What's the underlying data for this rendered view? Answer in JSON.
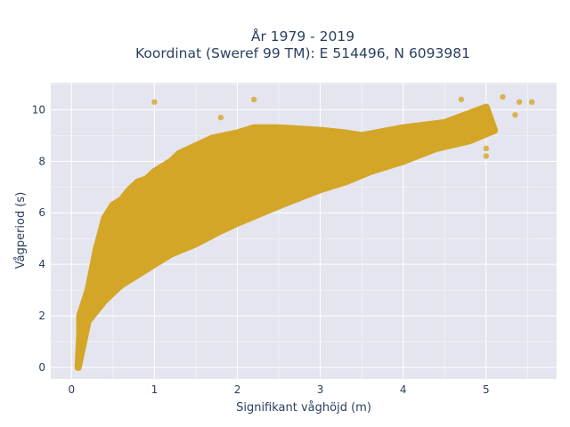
{
  "chart_data": {
    "type": "scatter",
    "title_line1": "År 1979 - 2019",
    "title_line2": "Koordinat (Sweref 99 TM): E 514496, N 6093981",
    "xlabel": "Signifikant våghöjd (m)",
    "ylabel": "Vågperiod (s)",
    "xlim": [
      -0.25,
      5.85
    ],
    "ylim": [
      -0.45,
      11.05
    ],
    "xticks": [
      0,
      1,
      2,
      3,
      4,
      5
    ],
    "yticks": [
      0,
      2,
      4,
      6,
      8,
      10
    ],
    "grid": true,
    "colors": {
      "marker": "#d4a628",
      "plot_bg": "#e5e5ef",
      "grid": "#ffffff",
      "text": "#2a3f5f"
    },
    "series": [
      {
        "marker_color": "#d4a628",
        "points": [
          [
            0.08,
            0.0
          ],
          [
            0.1,
            1.3
          ],
          [
            0.1,
            2.0
          ],
          [
            0.15,
            2.5
          ],
          [
            0.2,
            3.0
          ],
          [
            0.25,
            3.8
          ],
          [
            0.3,
            4.6
          ],
          [
            0.35,
            5.2
          ],
          [
            0.4,
            5.8
          ],
          [
            0.5,
            6.3
          ],
          [
            0.6,
            6.5
          ],
          [
            0.7,
            6.9
          ],
          [
            0.8,
            7.2
          ],
          [
            0.9,
            7.3
          ],
          [
            1.0,
            7.6
          ],
          [
            1.1,
            7.8
          ],
          [
            1.2,
            8.0
          ],
          [
            1.3,
            8.3
          ],
          [
            1.5,
            8.6
          ],
          [
            1.7,
            8.9
          ],
          [
            2.0,
            9.1
          ],
          [
            2.2,
            9.3
          ],
          [
            2.5,
            9.3
          ],
          [
            3.0,
            9.2
          ],
          [
            3.3,
            9.1
          ],
          [
            3.5,
            9.0
          ],
          [
            4.0,
            9.3
          ],
          [
            4.5,
            9.5
          ],
          [
            5.0,
            10.1
          ],
          [
            0.2,
            1.8
          ],
          [
            0.3,
            2.2
          ],
          [
            0.4,
            2.6
          ],
          [
            0.5,
            2.9
          ],
          [
            0.6,
            3.2
          ],
          [
            0.8,
            3.6
          ],
          [
            1.0,
            4.0
          ],
          [
            1.2,
            4.4
          ],
          [
            1.5,
            4.8
          ],
          [
            1.8,
            5.3
          ],
          [
            2.0,
            5.6
          ],
          [
            2.3,
            6.0
          ],
          [
            2.6,
            6.4
          ],
          [
            3.0,
            6.9
          ],
          [
            3.3,
            7.2
          ],
          [
            3.6,
            7.6
          ],
          [
            4.0,
            8.0
          ],
          [
            4.4,
            8.5
          ],
          [
            4.8,
            8.8
          ],
          [
            5.1,
            9.2
          ],
          [
            1.0,
            10.3
          ],
          [
            1.8,
            9.7
          ],
          [
            2.2,
            10.4
          ],
          [
            4.7,
            10.4
          ],
          [
            5.2,
            10.5
          ],
          [
            5.4,
            10.3
          ],
          [
            5.55,
            10.3
          ],
          [
            5.35,
            9.8
          ],
          [
            4.8,
            8.8
          ],
          [
            5.0,
            8.5
          ],
          [
            5.0,
            8.2
          ]
        ]
      }
    ]
  }
}
